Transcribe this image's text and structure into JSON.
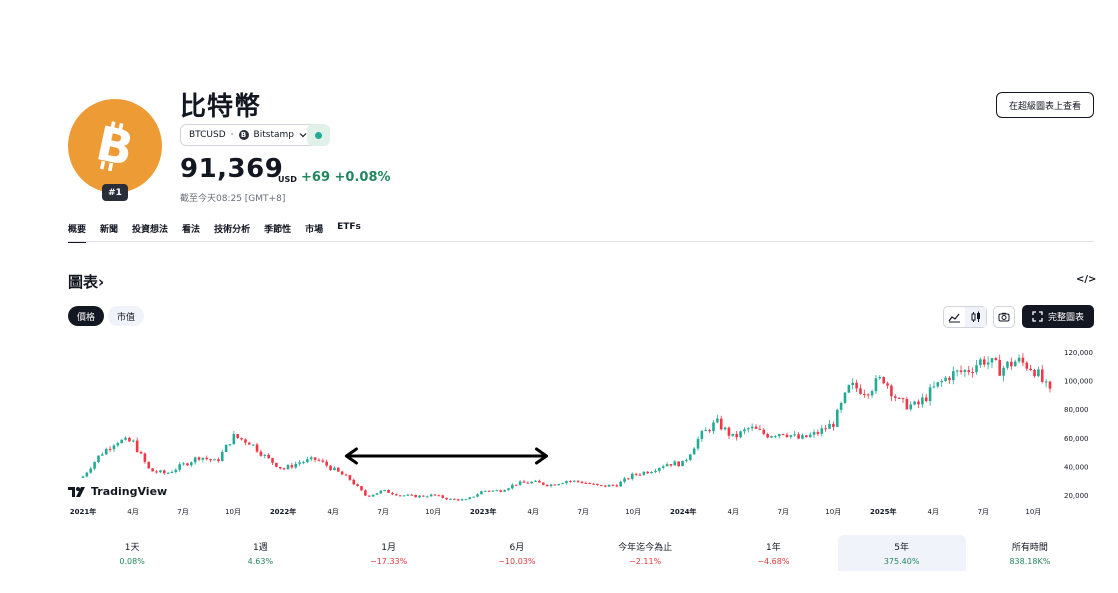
{
  "asset": {
    "name": "比特幣",
    "rank_badge": "#1",
    "symbol": "BTCUSD",
    "separator": "·",
    "exchange": "Bitstamp",
    "exchange_icon_letter": "B",
    "price": "91,369",
    "currency": "USD",
    "change": "+69",
    "change_pct": "+0.08%",
    "as_of": "截至今天08:25 [GMT+8]",
    "logo_icon": "bitcoin-icon",
    "brand_color": "#ED9B35"
  },
  "header": {
    "superchart_button": "在超級圖表上查看"
  },
  "tabs": [
    "概要",
    "新聞",
    "投資想法",
    "看法",
    "技術分析",
    "季節性",
    "市場",
    "ETFs"
  ],
  "chart_section": {
    "title": "圖表",
    "title_arrow": "›",
    "embed_icon_text": "</>",
    "toggles": [
      "價格",
      "市值"
    ],
    "fullscreen_button": "完整圖表",
    "watermark": "TradingView"
  },
  "chart_data": {
    "type": "candlestick",
    "x_tick_labels": [
      "2021年",
      "4月",
      "7月",
      "10月",
      "2022年",
      "4月",
      "7月",
      "10月",
      "2023年",
      "4月",
      "7月",
      "10月",
      "2024年",
      "4月",
      "7月",
      "10月",
      "2025年",
      "4月",
      "7月",
      "10月"
    ],
    "y_tick_labels": [
      "120,000",
      "100,000",
      "80,000",
      "60,000",
      "40,000",
      "20,000"
    ],
    "y_ticks": [
      120000,
      100000,
      80000,
      60000,
      40000,
      20000
    ],
    "x_start": "2021-01",
    "x_end": "2025-11",
    "up_color": "#22ab94",
    "down_color": "#f23645",
    "weekly_close_approx": [
      [
        "2021-01",
        33000
      ],
      [
        "2021-02",
        48000
      ],
      [
        "2021-03",
        58000
      ],
      [
        "2021-04",
        57000
      ],
      [
        "2021-05",
        37000
      ],
      [
        "2021-06",
        35000
      ],
      [
        "2021-07",
        41000
      ],
      [
        "2021-08",
        47000
      ],
      [
        "2021-09",
        43000
      ],
      [
        "2021-10",
        61000
      ],
      [
        "2021-11",
        57000
      ],
      [
        "2021-12",
        46000
      ],
      [
        "2022-01",
        38000
      ],
      [
        "2022-02",
        43000
      ],
      [
        "2022-03",
        45000
      ],
      [
        "2022-04",
        38000
      ],
      [
        "2022-05",
        31000
      ],
      [
        "2022-06",
        19000
      ],
      [
        "2022-07",
        23000
      ],
      [
        "2022-08",
        20000
      ],
      [
        "2022-09",
        19000
      ],
      [
        "2022-10",
        20000
      ],
      [
        "2022-11",
        17000
      ],
      [
        "2022-12",
        16500
      ],
      [
        "2023-01",
        23000
      ],
      [
        "2023-02",
        23000
      ],
      [
        "2023-03",
        28000
      ],
      [
        "2023-04",
        29000
      ],
      [
        "2023-05",
        27000
      ],
      [
        "2023-06",
        30000
      ],
      [
        "2023-07",
        29000
      ],
      [
        "2023-08",
        26000
      ],
      [
        "2023-09",
        27000
      ],
      [
        "2023-10",
        34000
      ],
      [
        "2023-11",
        37000
      ],
      [
        "2023-12",
        42000
      ],
      [
        "2024-01",
        42000
      ],
      [
        "2024-02",
        61000
      ],
      [
        "2024-03",
        71000
      ],
      [
        "2024-04",
        60000
      ],
      [
        "2024-05",
        67000
      ],
      [
        "2024-06",
        62000
      ],
      [
        "2024-07",
        64000
      ],
      [
        "2024-08",
        59000
      ],
      [
        "2024-09",
        63000
      ],
      [
        "2024-10",
        70000
      ],
      [
        "2024-11",
        96000
      ],
      [
        "2024-12",
        93000
      ],
      [
        "2025-01",
        102000
      ],
      [
        "2025-02",
        84000
      ],
      [
        "2025-03",
        82000
      ],
      [
        "2025-04",
        94000
      ],
      [
        "2025-05",
        104000
      ],
      [
        "2025-06",
        107000
      ],
      [
        "2025-07",
        115000
      ],
      [
        "2025-08",
        108000
      ],
      [
        "2025-09",
        114000
      ],
      [
        "2025-10",
        109000
      ],
      [
        "2025-11",
        91000
      ]
    ]
  },
  "performance": [
    {
      "label": "1天",
      "value": "0.08%",
      "trend": "up"
    },
    {
      "label": "1週",
      "value": "4.63%",
      "trend": "up"
    },
    {
      "label": "1月",
      "value": "−17.33%",
      "trend": "down"
    },
    {
      "label": "6月",
      "value": "−10.03%",
      "trend": "down"
    },
    {
      "label": "今年迄今為止",
      "value": "−2.11%",
      "trend": "down"
    },
    {
      "label": "1年",
      "value": "−4.68%",
      "trend": "down"
    },
    {
      "label": "5年",
      "value": "375.40%",
      "trend": "up",
      "active": true
    },
    {
      "label": "所有時間",
      "value": "838.18K%",
      "trend": "up"
    }
  ]
}
